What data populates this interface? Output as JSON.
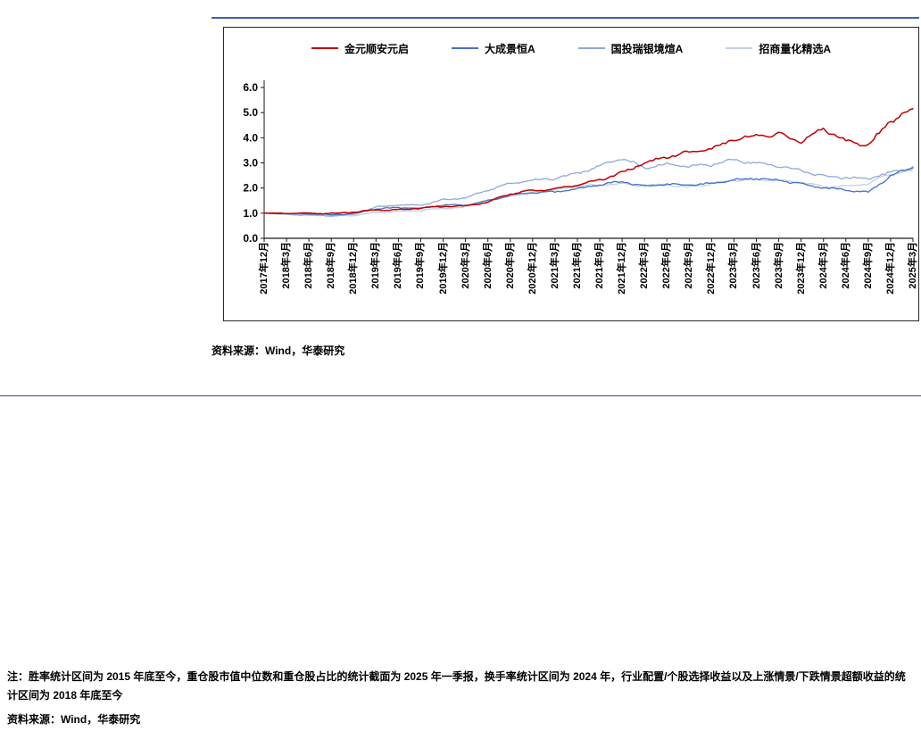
{
  "figure": {
    "source_note": "资料来源：Wind，华泰研究"
  },
  "chart_data": {
    "type": "line",
    "title": "",
    "xlabel": "",
    "ylabel": "",
    "ylim": [
      0,
      6
    ],
    "yticks": [
      0,
      1,
      2,
      3,
      4,
      5,
      6
    ],
    "grid": false,
    "legend_position": "top",
    "x_label_rotation": -90,
    "categories": [
      "2017年12月",
      "2018年3月",
      "2018年6月",
      "2018年9月",
      "2018年12月",
      "2019年3月",
      "2019年6月",
      "2019年9月",
      "2019年12月",
      "2020年3月",
      "2020年6月",
      "2020年9月",
      "2020年12月",
      "2021年3月",
      "2021年6月",
      "2021年9月",
      "2021年12月",
      "2022年3月",
      "2022年6月",
      "2022年9月",
      "2022年12月",
      "2023年3月",
      "2023年6月",
      "2023年9月",
      "2023年12月",
      "2024年3月",
      "2024年6月",
      "2024年9月",
      "2024年12月",
      "2025年3月"
    ],
    "series": [
      {
        "name": "金元顺安元启",
        "color": "#C00000",
        "values": [
          1.0,
          0.99,
          1.0,
          1.0,
          1.03,
          1.12,
          1.15,
          1.2,
          1.25,
          1.3,
          1.45,
          1.75,
          1.9,
          1.97,
          2.1,
          2.3,
          2.65,
          3.0,
          3.2,
          3.45,
          3.6,
          3.9,
          4.05,
          4.2,
          3.85,
          4.3,
          3.9,
          3.75,
          4.6,
          5.15
        ]
      },
      {
        "name": "大成景恒A",
        "color": "#4472C4",
        "values": [
          1.0,
          0.98,
          0.97,
          0.95,
          1.0,
          1.15,
          1.22,
          1.22,
          1.32,
          1.3,
          1.52,
          1.72,
          1.8,
          1.85,
          2.0,
          2.1,
          2.25,
          2.1,
          2.15,
          2.1,
          2.2,
          2.35,
          2.35,
          2.3,
          2.2,
          2.0,
          1.9,
          1.85,
          2.5,
          2.8
        ]
      },
      {
        "name": "国投瑞银境煊A",
        "color": "#8EA9DB",
        "values": [
          1.0,
          0.96,
          0.92,
          0.88,
          0.96,
          1.25,
          1.3,
          1.32,
          1.55,
          1.6,
          1.9,
          2.2,
          2.3,
          2.35,
          2.6,
          2.9,
          3.15,
          2.8,
          3.0,
          2.85,
          2.9,
          3.15,
          3.0,
          2.85,
          2.7,
          2.5,
          2.4,
          2.35,
          2.65,
          2.85
        ]
      },
      {
        "name": "招商量化精选A",
        "color": "#C3CFE3",
        "values": [
          1.0,
          0.97,
          0.93,
          0.9,
          0.9,
          1.03,
          1.06,
          1.1,
          1.2,
          1.25,
          1.45,
          1.7,
          1.85,
          1.9,
          2.05,
          2.15,
          2.2,
          2.05,
          2.15,
          2.05,
          2.15,
          2.3,
          2.35,
          2.3,
          2.2,
          2.05,
          2.1,
          2.15,
          2.55,
          2.7
        ]
      }
    ]
  },
  "footer": {
    "note": "注：胜率统计区间为 2015 年底至今，重仓股市值中位数和重仓股占比的统计截面为 2025 年一季报，换手率统计区间为 2024 年，行业配置/个股选择收益以及上涨情景/下跌情景超额收益的统计区间为 2018 年底至今",
    "source": "资料来源：Wind，华泰研究"
  },
  "colors": {
    "rule_blue": "#3C64B1",
    "divider_blue": "#2F4C8A",
    "axis": "#1a1a1a"
  }
}
